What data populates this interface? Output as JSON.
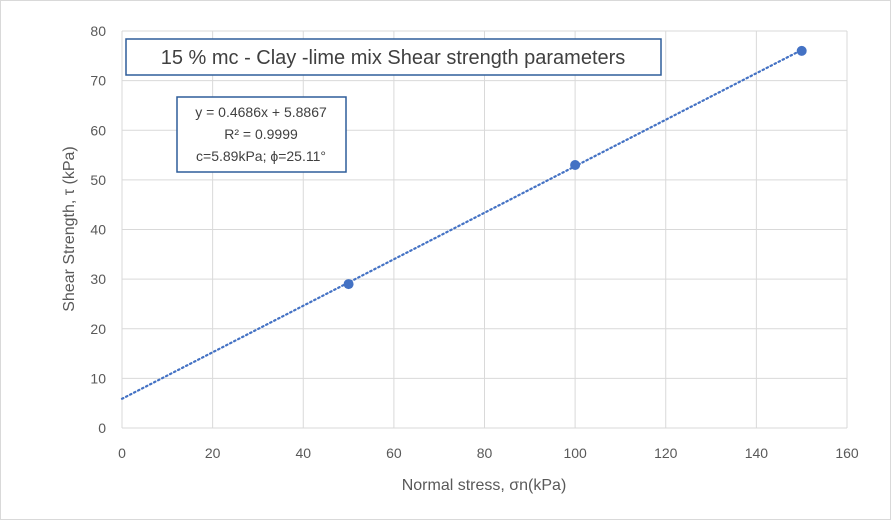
{
  "chart_data": {
    "type": "scatter",
    "title": "15 % mc - Clay -lime mix Shear strength parameters",
    "xlabel": "Normal stress, σn(kPa)",
    "ylabel": "Shear Strength, τ (kPa)",
    "xlim": [
      0,
      160
    ],
    "ylim": [
      0,
      80
    ],
    "xticks": [
      0,
      20,
      40,
      60,
      80,
      100,
      120,
      140,
      160
    ],
    "yticks": [
      0,
      10,
      20,
      30,
      40,
      50,
      60,
      70,
      80
    ],
    "grid": true,
    "series": [
      {
        "x": [
          50,
          100,
          150
        ],
        "y": [
          29,
          53,
          76
        ],
        "color": "#4472c4"
      }
    ],
    "trendline": {
      "type": "linear",
      "slope": 0.4686,
      "intercept": 5.8867,
      "x_range": [
        0,
        150
      ],
      "color": "#4472c4",
      "style": "dotted"
    },
    "annotation": {
      "equation": "y = 0.4686x + 5.8867",
      "r_squared": "R² = 0.9999",
      "parameters": "c=5.89kPa; ϕ=25.11°"
    }
  }
}
